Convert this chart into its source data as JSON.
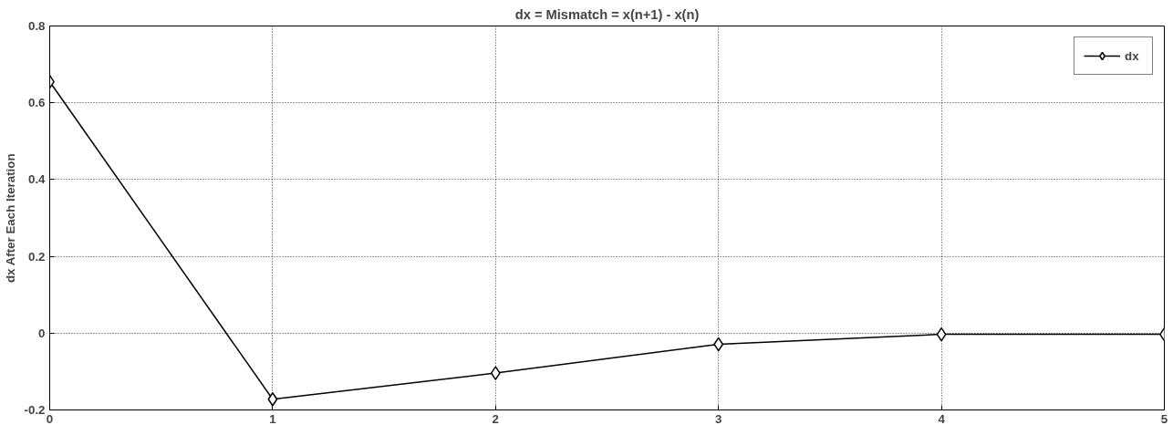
{
  "chart_data": {
    "type": "line",
    "title": "dx = Mismatch = x(n+1) - x(n)",
    "ylabel": "dx After Each Iteration",
    "x": [
      0,
      1,
      2,
      3,
      4,
      5
    ],
    "series": [
      {
        "name": "dx",
        "color": "#000000",
        "values": [
          0.655,
          -0.172,
          -0.104,
          -0.029,
          -0.003,
          -0.003
        ]
      }
    ],
    "xlim": [
      0,
      5
    ],
    "xticks": [
      0,
      1,
      2,
      3,
      4,
      5
    ],
    "ylim": [
      -0.2,
      0.8
    ],
    "yticks": [
      {
        "value": -0.2,
        "label": "-0.2"
      },
      {
        "value": 0,
        "label": "0"
      },
      {
        "value": 0.2,
        "label": "0.2"
      },
      {
        "value": 0.4,
        "label": "0.4"
      },
      {
        "value": 0.6,
        "label": "0.6"
      },
      {
        "value": 0.8,
        "label": "0.8"
      }
    ],
    "grid": true,
    "legend": "top right",
    "marker": "diamond",
    "line_style": "solid"
  }
}
